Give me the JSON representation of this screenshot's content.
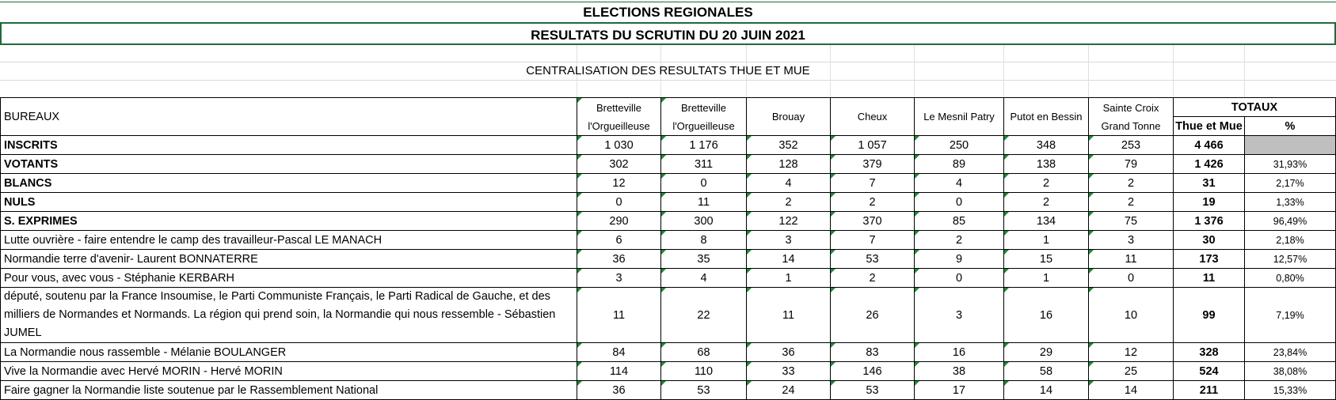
{
  "title": "ELECTIONS REGIONALES",
  "subtitle": "RESULTATS DU SCRUTIN DU 20 JUIN 2021",
  "centralisation": "CENTRALISATION DES RESULTATS THUE ET MUE",
  "header": {
    "bureaux": "BUREAUX",
    "communes": [
      [
        "Bretteville",
        "l'Orgueilleuse"
      ],
      [
        "Bretteville",
        "l'Orgueilleuse"
      ],
      [
        "Brouay"
      ],
      [
        "Cheux"
      ],
      [
        "Le Mesnil Patry"
      ],
      [
        "Putot en Bessin"
      ],
      [
        "Sainte Croix",
        "Grand Tonne"
      ]
    ],
    "totaux": "TOTAUX",
    "thue_et_mue": "Thue et Mue",
    "pct": "%"
  },
  "rows": [
    {
      "label": "INSCRITS",
      "bold": true,
      "values": [
        "1 030",
        "1 176",
        "352",
        "1 057",
        "250",
        "348",
        "253"
      ],
      "total": "4 466",
      "pct": ""
    },
    {
      "label": "VOTANTS",
      "bold": true,
      "values": [
        "302",
        "311",
        "128",
        "379",
        "89",
        "138",
        "79"
      ],
      "total": "1 426",
      "pct": "31,93%"
    },
    {
      "label": "BLANCS",
      "bold": true,
      "values": [
        "12",
        "0",
        "4",
        "7",
        "4",
        "2",
        "2"
      ],
      "total": "31",
      "pct": "2,17%"
    },
    {
      "label": "NULS",
      "bold": true,
      "values": [
        "0",
        "11",
        "2",
        "2",
        "0",
        "2",
        "2"
      ],
      "total": "19",
      "pct": "1,33%"
    },
    {
      "label": "S. EXPRIMES",
      "bold": true,
      "values": [
        "290",
        "300",
        "122",
        "370",
        "85",
        "134",
        "75"
      ],
      "total": "1 376",
      "pct": "96,49%"
    },
    {
      "label": "Lutte ouvrière - faire entendre le camp des travailleur-Pascal LE MANACH",
      "bold": false,
      "values": [
        "6",
        "8",
        "3",
        "7",
        "2",
        "1",
        "3"
      ],
      "total": "30",
      "pct": "2,18%"
    },
    {
      "label": "Normandie terre d'avenir- Laurent BONNATERRE",
      "bold": false,
      "values": [
        "36",
        "35",
        "14",
        "53",
        "9",
        "15",
        "11"
      ],
      "total": "173",
      "pct": "12,57%"
    },
    {
      "label": "Pour vous, avec vous - Stéphanie KERBARH",
      "bold": false,
      "values": [
        "3",
        "4",
        "1",
        "2",
        "0",
        "1",
        "0"
      ],
      "total": "11",
      "pct": "0,80%"
    },
    {
      "label": "député, soutenu par la France Insoumise, le Parti Communiste Français, le Parti Radical de Gauche, et des milliers de Normandes et Normands. La région qui prend soin, la Normandie qui nous ressemble - Sébastien JUMEL",
      "bold": false,
      "tall": true,
      "values": [
        "11",
        "22",
        "11",
        "26",
        "3",
        "16",
        "10"
      ],
      "total": "99",
      "pct": "7,19%"
    },
    {
      "label": "La Normandie nous rassemble - Mélanie BOULANGER",
      "bold": false,
      "values": [
        "84",
        "68",
        "36",
        "83",
        "16",
        "29",
        "12"
      ],
      "total": "328",
      "pct": "23,84%"
    },
    {
      "label": "Vive la Normandie avec Hervé MORIN - Hervé MORIN",
      "bold": false,
      "values": [
        "114",
        "110",
        "33",
        "146",
        "38",
        "58",
        "25"
      ],
      "total": "524",
      "pct": "38,08%"
    },
    {
      "label": "Faire gagner la Normandie liste soutenue par le Rassemblement National",
      "bold": false,
      "values": [
        "36",
        "53",
        "24",
        "53",
        "17",
        "14",
        "14"
      ],
      "total": "211",
      "pct": "15,33%"
    }
  ]
}
